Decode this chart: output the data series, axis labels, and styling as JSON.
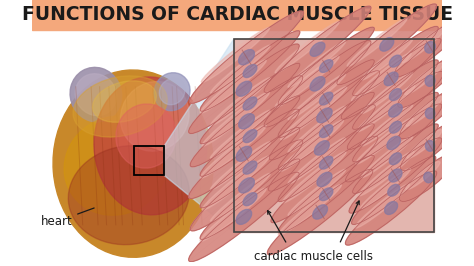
{
  "title": "FUNCTIONS OF CARDIAC MUSCLE TISSUE",
  "title_fontsize": 13.5,
  "title_color": "#1a1a1a",
  "title_bg_color": "#f4a87c",
  "bg_color": "#ffffff",
  "left_label": "heart",
  "right_label": "cardiac muscle cells",
  "label_fontsize": 8.5,
  "label_color": "#1a1a1a",
  "box_color": "#888888",
  "zoom_fill": "#c8dff0",
  "fig_width": 4.74,
  "fig_height": 2.66,
  "dpi": 100
}
